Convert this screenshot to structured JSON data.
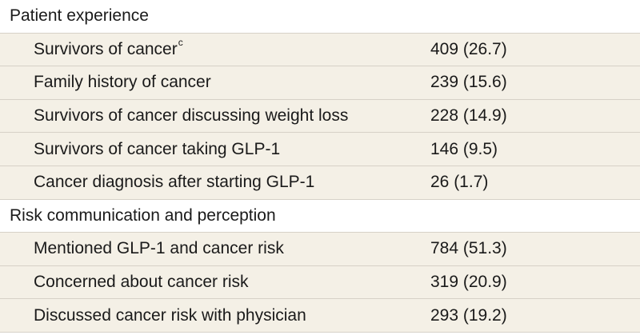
{
  "sections": [
    {
      "title": "Patient experience",
      "rows": [
        {
          "label": "Survivors of cancer",
          "sup": "c",
          "value": "409 (26.7)"
        },
        {
          "label": "Family history of cancer",
          "sup": "",
          "value": "239 (15.6)"
        },
        {
          "label": "Survivors of cancer discussing weight loss",
          "sup": "",
          "value": "228 (14.9)"
        },
        {
          "label": "Survivors of cancer taking GLP-1",
          "sup": "",
          "value": "146 (9.5)"
        },
        {
          "label": "Cancer diagnosis after starting GLP-1",
          "sup": "",
          "value": "26 (1.7)"
        }
      ]
    },
    {
      "title": "Risk communication and perception",
      "rows": [
        {
          "label": "Mentioned GLP-1 and cancer risk",
          "sup": "",
          "value": "784 (51.3)"
        },
        {
          "label": "Concerned about cancer risk",
          "sup": "",
          "value": "319 (20.9)"
        },
        {
          "label": "Discussed cancer risk with physician",
          "sup": "",
          "value": "293 (19.2)"
        }
      ]
    }
  ]
}
